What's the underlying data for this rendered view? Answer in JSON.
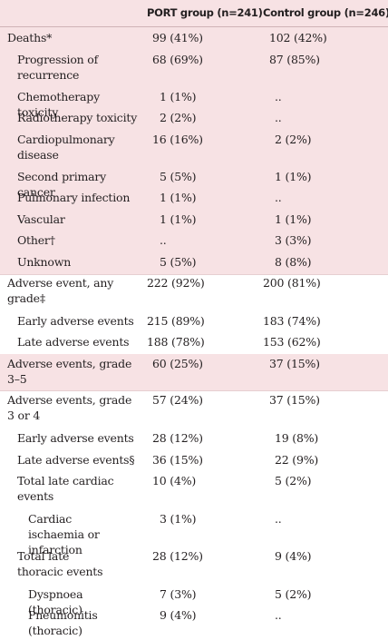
{
  "header": {
    "col_port": "PORT group (n=241)",
    "col_control": "Control group (n=246)"
  },
  "rows": [
    {
      "label": "Deaths*",
      "port": "99 (41%)",
      "control": "102 (42%)"
    },
    {
      "label": "Progression of recurrence",
      "port": "68 (69%)",
      "control": "87 (85%)"
    },
    {
      "label": "Chemotherapy toxicity",
      "port": "1 (1%)",
      "control": ".."
    },
    {
      "label": "Radiotherapy toxicity",
      "port": "2 (2%)",
      "control": ".."
    },
    {
      "label": "Cardiopulmonary disease",
      "port": "16 (16%)",
      "control": "2 (2%)"
    },
    {
      "label": "Second primary cancer",
      "port": "5 (5%)",
      "control": "1 (1%)"
    },
    {
      "label": "Pulmonary infection",
      "port": "1 (1%)",
      "control": ".."
    },
    {
      "label": "Vascular",
      "port": "1 (1%)",
      "control": "1 (1%)"
    },
    {
      "label": "Other†",
      "port": "..",
      "control": "3 (3%)"
    },
    {
      "label": "Unknown",
      "port": "5 (5%)",
      "control": "8 (8%)"
    },
    {
      "label": "Adverse event, any grade‡",
      "port": "222 (92%)",
      "control": "200 (81%)"
    },
    {
      "label": "Early adverse events",
      "port": "215 (89%)",
      "control": "183 (74%)"
    },
    {
      "label": "Late adverse events",
      "port": "188 (78%)",
      "control": "153 (62%)"
    },
    {
      "label": "Adverse events, grade 3–5",
      "port": "60 (25%)",
      "control": "37 (15%)"
    },
    {
      "label": "Adverse events, grade 3 or 4",
      "port": "57 (24%)",
      "control": "37 (15%)"
    },
    {
      "label": "Early adverse events",
      "port": "28 (12%)",
      "control": "19 (8%)"
    },
    {
      "label": "Late adverse events§",
      "port": "36 (15%)",
      "control": "22 (9%)"
    },
    {
      "label": "Total late cardiac events",
      "port": "10 (4%)",
      "control": "5 (2%)"
    },
    {
      "label": "Cardiac ischaemia or infarction",
      "port": "3 (1%)",
      "control": ".."
    },
    {
      "label": "Total late thoracic events",
      "port": "28 (12%)",
      "control": "9 (4%)"
    },
    {
      "label": "Dyspnoea (thoracic)",
      "port": "7 (3%)",
      "control": "5 (2%)"
    },
    {
      "label": "Pneumonitis (thoracic)",
      "port": "9 (4%)",
      "control": ".."
    }
  ]
}
